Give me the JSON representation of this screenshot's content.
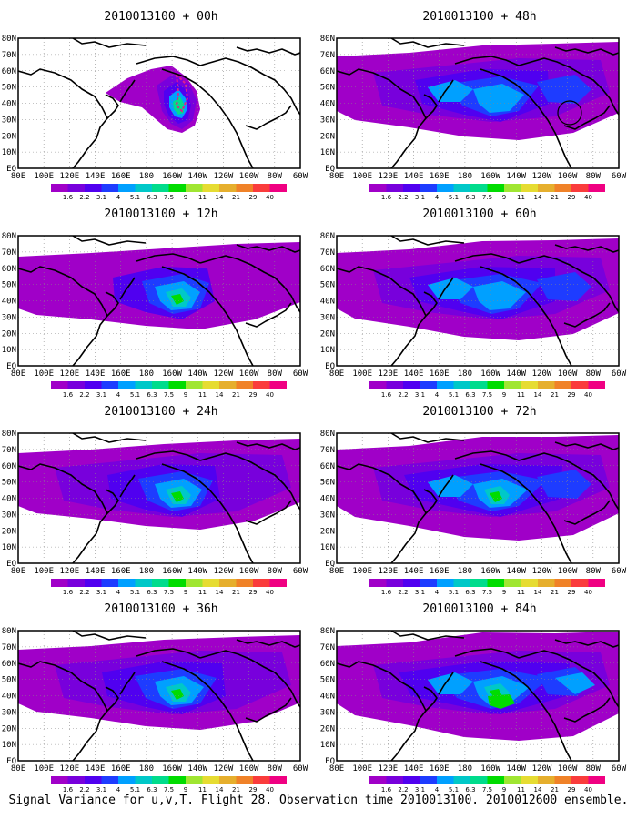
{
  "figure": {
    "caption": "Signal Variance for u,v,T. Flight 28. Observation time 2010013100. 2010012600 ensemble.",
    "lon_labels": [
      "80E",
      "100E",
      "120E",
      "140E",
      "160E",
      "180",
      "160W",
      "140W",
      "120W",
      "100W",
      "80W",
      "60W"
    ],
    "lat_labels": [
      "80N",
      "70N",
      "60N",
      "50N",
      "40N",
      "30N",
      "20N",
      "10N",
      "EQ"
    ],
    "colorbar": {
      "levels": [
        "1.6",
        "2.2",
        "3.1",
        "4",
        "5.1",
        "6.3",
        "7.5",
        "9",
        "11",
        "14",
        "21",
        "29",
        "40"
      ],
      "colors": [
        "#a000c8",
        "#7800dc",
        "#5000f0",
        "#1e3cff",
        "#00a0ff",
        "#00c8c8",
        "#00dc8c",
        "#00dc00",
        "#a0e632",
        "#e6dc32",
        "#e6af2d",
        "#f08228",
        "#fa3c3c",
        "#f00082"
      ]
    },
    "panels": [
      {
        "id": "p00",
        "title": "2010013100 + 00h",
        "level": 0
      },
      {
        "id": "p48",
        "title": "2010013100 + 48h",
        "level": 4
      },
      {
        "id": "p12",
        "title": "2010013100 + 12h",
        "level": 1
      },
      {
        "id": "p60",
        "title": "2010013100 + 60h",
        "level": 5
      },
      {
        "id": "p24",
        "title": "2010013100 + 24h",
        "level": 2
      },
      {
        "id": "p72",
        "title": "2010013100 + 72h",
        "level": 6
      },
      {
        "id": "p36",
        "title": "2010013100 + 36h",
        "level": 3
      },
      {
        "id": "p84",
        "title": "2010013100 + 84h",
        "level": 7
      }
    ]
  }
}
